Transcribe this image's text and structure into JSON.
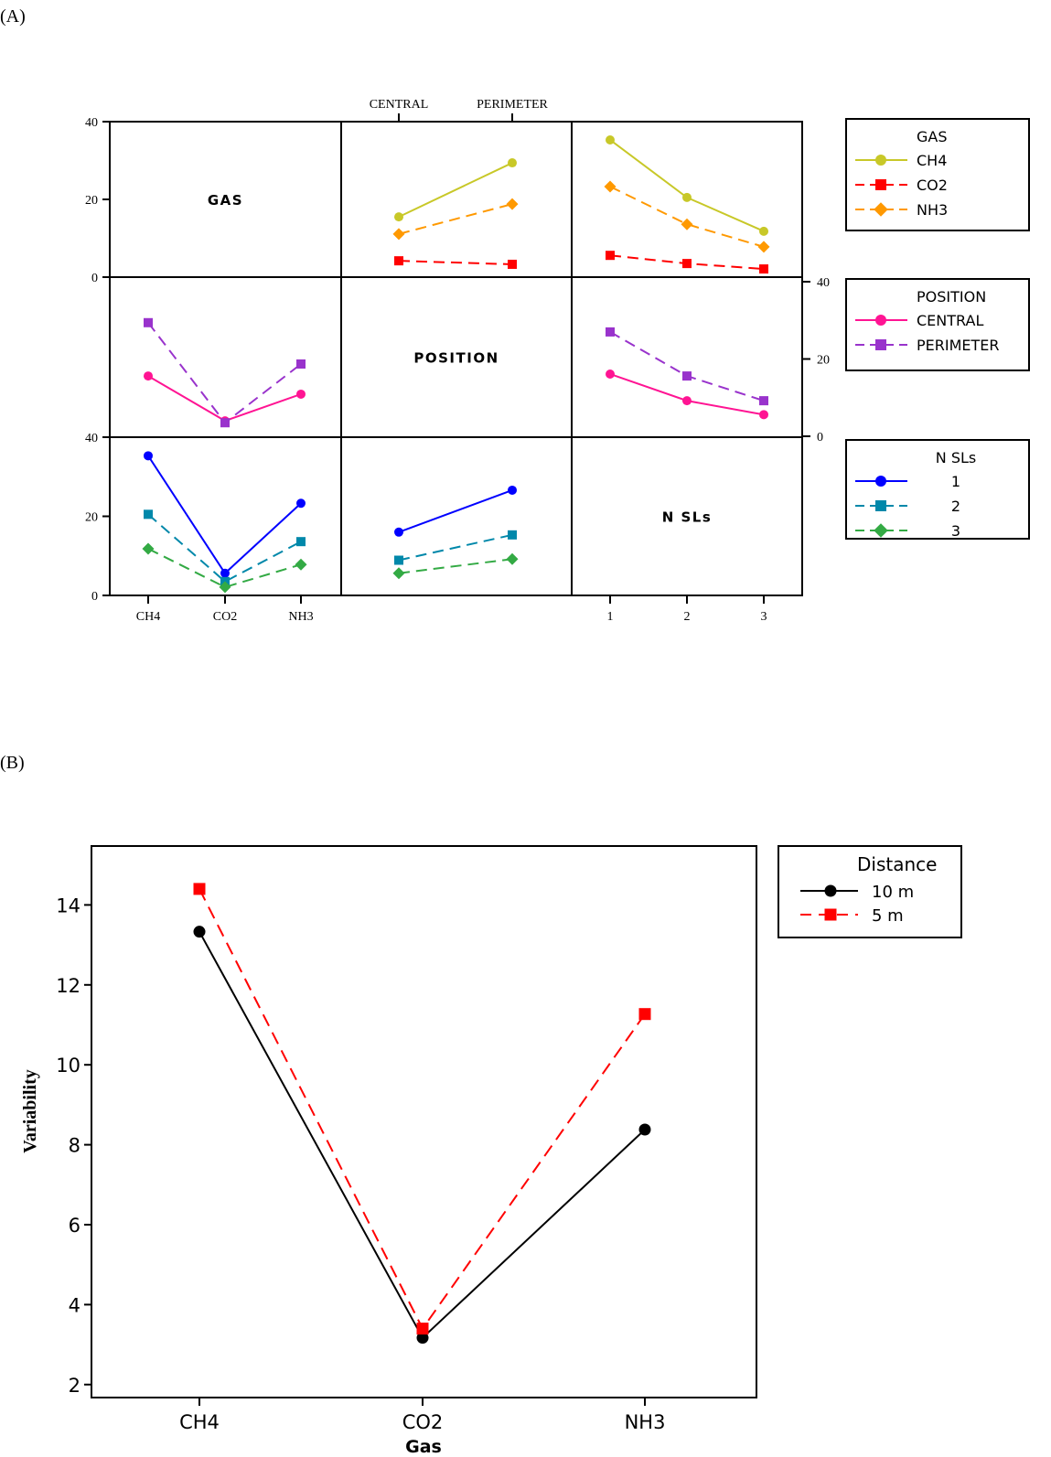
{
  "panel_labels": {
    "a": "(A)",
    "b": "(B)"
  },
  "chart_data": [
    {
      "type": "line",
      "title": "Interaction plot matrix",
      "panel": "A",
      "factors": {
        "GAS": {
          "levels": [
            "CH4",
            "CO2",
            "NH3"
          ]
        },
        "POSITION": {
          "levels": [
            "CENTRAL",
            "PERIMETER"
          ]
        },
        "N SLs": {
          "levels": [
            "1",
            "2",
            "3"
          ]
        }
      },
      "diagonal_labels": [
        "GAS",
        "POSITION",
        "N SLs"
      ],
      "ylim": [
        0,
        40
      ],
      "yticks": [
        0,
        20,
        40
      ],
      "legends": [
        {
          "title": "GAS",
          "entries": [
            {
              "label": "CH4",
              "color": "#c8c828",
              "marker": "circle",
              "dash": "solid"
            },
            {
              "label": "CO2",
              "color": "#ff0000",
              "marker": "square",
              "dash": "dashed"
            },
            {
              "label": "NH3",
              "color": "#ff9900",
              "marker": "diamond",
              "dash": "dashed"
            }
          ]
        },
        {
          "title": "POSITION",
          "entries": [
            {
              "label": "CENTRAL",
              "color": "#ff1493",
              "marker": "circle",
              "dash": "solid"
            },
            {
              "label": "PERIMETER",
              "color": "#9933cc",
              "marker": "square",
              "dash": "dashed"
            }
          ]
        },
        {
          "title": "N SLs",
          "entries": [
            {
              "label": "1",
              "color": "#0000ff",
              "marker": "circle",
              "dash": "solid"
            },
            {
              "label": "2",
              "color": "#0088aa",
              "marker": "square",
              "dash": "dashed"
            },
            {
              "label": "3",
              "color": "#33aa44",
              "marker": "diamond",
              "dash": "dashed"
            }
          ]
        }
      ],
      "cells": [
        {
          "row": 0,
          "col": 1,
          "trace": "GAS",
          "x": "POSITION",
          "series": [
            {
              "name": "CH4",
              "values": [
                15.5,
                29.4
              ]
            },
            {
              "name": "CO2",
              "values": [
                4.2,
                3.3
              ]
            },
            {
              "name": "NH3",
              "values": [
                11.1,
                18.8
              ]
            }
          ]
        },
        {
          "row": 0,
          "col": 2,
          "trace": "GAS",
          "x": "N SLs",
          "series": [
            {
              "name": "CH4",
              "values": [
                35.3,
                20.5,
                11.8
              ]
            },
            {
              "name": "CO2",
              "values": [
                5.6,
                3.5,
                2.1
              ]
            },
            {
              "name": "NH3",
              "values": [
                23.3,
                13.6,
                7.8
              ]
            }
          ]
        },
        {
          "row": 1,
          "col": 0,
          "trace": "POSITION",
          "x": "GAS",
          "series": [
            {
              "name": "CENTRAL",
              "values": [
                15.6,
                4.0,
                10.9
              ]
            },
            {
              "name": "PERIMETER",
              "values": [
                29.4,
                3.5,
                18.7
              ]
            }
          ]
        },
        {
          "row": 1,
          "col": 2,
          "trace": "POSITION",
          "x": "N SLs",
          "series": [
            {
              "name": "CENTRAL",
              "values": [
                16.1,
                9.2,
                5.6
              ]
            },
            {
              "name": "PERIMETER",
              "values": [
                27.0,
                15.6,
                9.2
              ]
            }
          ]
        },
        {
          "row": 2,
          "col": 0,
          "trace": "N SLs",
          "x": "GAS",
          "series": [
            {
              "name": "1",
              "values": [
                35.3,
                5.6,
                23.3
              ]
            },
            {
              "name": "2",
              "values": [
                20.5,
                3.5,
                13.6
              ]
            },
            {
              "name": "3",
              "values": [
                11.8,
                2.1,
                7.8
              ]
            }
          ]
        },
        {
          "row": 2,
          "col": 1,
          "trace": "N SLs",
          "x": "POSITION",
          "series": [
            {
              "name": "1",
              "values": [
                16.0,
                26.6
              ]
            },
            {
              "name": "2",
              "values": [
                8.9,
                15.3
              ]
            },
            {
              "name": "3",
              "values": [
                5.6,
                9.2
              ]
            }
          ]
        }
      ]
    },
    {
      "type": "line",
      "panel": "B",
      "title": "",
      "categories": [
        "CH4",
        "CO2",
        "NH3"
      ],
      "xlabel": "Gas",
      "ylabel": "Variability",
      "ylim": [
        1.8,
        15.1
      ],
      "yticks": [
        2,
        4,
        6,
        8,
        10,
        12,
        14
      ],
      "legend": {
        "title": "Distance",
        "placement": "right"
      },
      "series": [
        {
          "name": "10 m",
          "color": "#000000",
          "marker": "circle",
          "dash": "solid",
          "values": [
            13.33,
            3.17,
            8.38
          ]
        },
        {
          "name": "5 m",
          "color": "#ff0000",
          "marker": "square",
          "dash": "dashed",
          "values": [
            14.4,
            3.4,
            11.27
          ]
        }
      ]
    }
  ]
}
